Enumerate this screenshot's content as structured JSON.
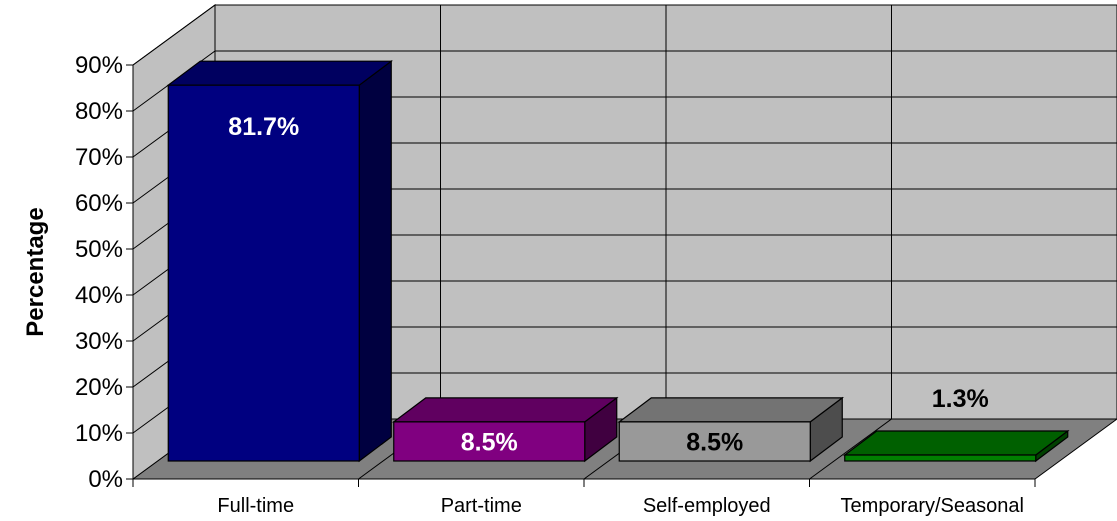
{
  "chart_data": {
    "type": "bar",
    "ylabel": "Percentage",
    "xlabel": "",
    "ylim": [
      0,
      90
    ],
    "yticks": [
      "0%",
      "10%",
      "20%",
      "30%",
      "40%",
      "50%",
      "60%",
      "70%",
      "80%",
      "90%"
    ],
    "categories": [
      "Full-time",
      "Part-time",
      "Self-employed",
      "Temporary/Seasonal"
    ],
    "values": [
      81.7,
      8.5,
      8.5,
      1.3
    ],
    "data_labels": [
      "81.7%",
      "8.5%",
      "8.5%",
      "1.3%"
    ],
    "colors": [
      "#000080",
      "#800080",
      "#999999",
      "#008000"
    ],
    "grid": true,
    "legend": "none",
    "projection": "3d"
  }
}
